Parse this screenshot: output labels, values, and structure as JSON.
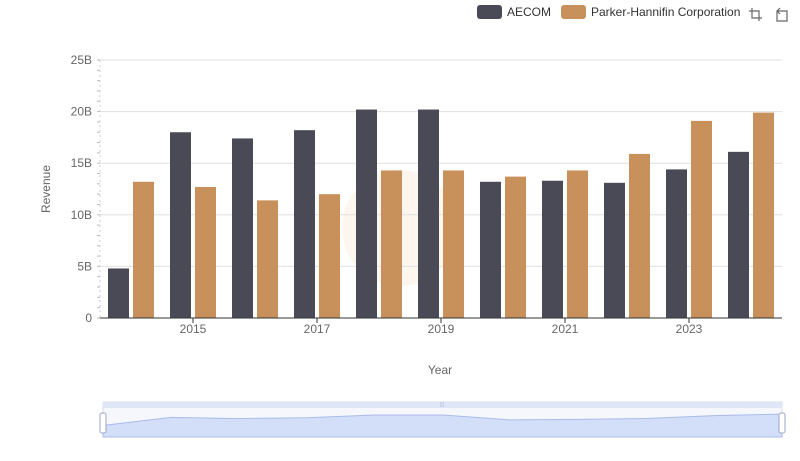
{
  "chart_data": {
    "type": "bar",
    "categories": [
      "2014",
      "2015",
      "2016",
      "2017",
      "2018",
      "2019",
      "2020",
      "2021",
      "2022",
      "2023",
      "2024"
    ],
    "x_tick_labels": [
      "2015",
      "2017",
      "2019",
      "2021",
      "2023"
    ],
    "series": [
      {
        "name": "AECOM",
        "color": "#4a4a56",
        "values": [
          4.8,
          18.0,
          17.4,
          18.2,
          20.2,
          20.2,
          13.2,
          13.3,
          13.1,
          14.4,
          16.1
        ]
      },
      {
        "name": "Parker-Hannifin Corporation",
        "color": "#c8915c",
        "values": [
          13.2,
          12.7,
          11.4,
          12.0,
          14.3,
          14.3,
          13.7,
          14.3,
          15.9,
          19.1,
          19.9
        ]
      }
    ],
    "y_tick_labels": [
      "0",
      "5B",
      "10B",
      "15B",
      "20B",
      "25B"
    ],
    "y_ticks": [
      0,
      5,
      10,
      15,
      20,
      25
    ],
    "ylim": [
      0,
      25
    ],
    "ylabel": "Revenue",
    "xlabel": "Year",
    "legend_position": "top-right",
    "grid": true
  },
  "toolbar": {
    "icons": [
      "zoom-icon",
      "reset-icon"
    ]
  },
  "data_zoom": {
    "range_start": 0,
    "range_end": 100
  }
}
